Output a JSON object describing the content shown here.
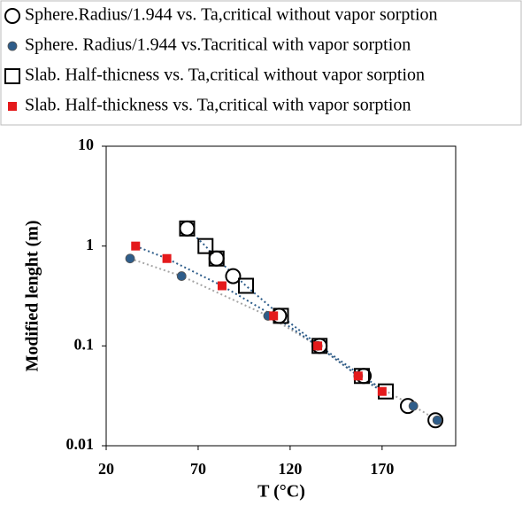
{
  "chart_data": {
    "type": "scatter",
    "xlabel": "T (°C)",
    "ylabel": "Modified lenght  (m)",
    "xlim": [
      20,
      210
    ],
    "xticks": [
      20,
      70,
      120,
      170
    ],
    "ylim": [
      0.01,
      10
    ],
    "yticks": [
      0.01,
      0.1,
      1,
      10
    ],
    "ylog": true,
    "series": [
      {
        "name": "Sphere.Radius/1.944 vs. Ta,critical without vapor sorption",
        "marker": "circle-open",
        "color": "#000000",
        "x": [
          64,
          80,
          89,
          114,
          136,
          160,
          184,
          199
        ],
        "values": [
          1.5,
          0.75,
          0.5,
          0.2,
          0.1,
          0.05,
          0.025,
          0.018
        ]
      },
      {
        "name": "Sphere. Radius/1.944 vs.Tacritical with vapor sorption",
        "marker": "circle-filled",
        "color": "#2e5d8a",
        "line_color": "#a6a6a6",
        "x": [
          33,
          61,
          108,
          135,
          157,
          187,
          200
        ],
        "values": [
          0.75,
          0.5,
          0.2,
          0.1,
          0.05,
          0.025,
          0.018
        ]
      },
      {
        "name": "Slab. Half-thicness vs. Ta,critical without vapor sorption",
        "marker": "square-open",
        "color": "#000000",
        "line_color": "#2e5d8a",
        "x": [
          64,
          74,
          80,
          96,
          115,
          136,
          159,
          172
        ],
        "values": [
          1.5,
          1.0,
          0.75,
          0.4,
          0.2,
          0.1,
          0.05,
          0.035
        ]
      },
      {
        "name": "Slab. Half-thickness vs. Ta,critical with vapor sorption",
        "marker": "square-filled",
        "color": "#e41a1c",
        "line_color": "#2e5d8a",
        "x": [
          36,
          53,
          83,
          111,
          135,
          157,
          170
        ],
        "values": [
          1.0,
          0.75,
          0.4,
          0.2,
          0.1,
          0.05,
          0.035
        ]
      }
    ]
  }
}
